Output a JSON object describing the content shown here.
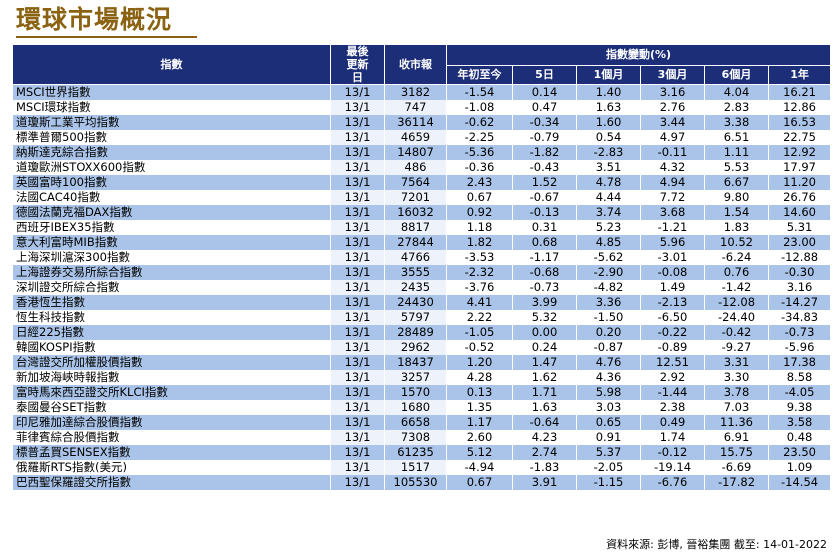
{
  "title": "環球市場概況",
  "headers": {
    "index": "指數",
    "date": "最後更新日",
    "close": "收市報",
    "change_group": "指數變動(%)",
    "periods": [
      "年初至今",
      "5日",
      "1個月",
      "3個月",
      "6個月",
      "1年"
    ]
  },
  "rows": [
    {
      "name": "MSCI世界指數",
      "date": "13/1",
      "close": "3182",
      "c": [
        "-1.54",
        "0.14",
        "1.40",
        "3.16",
        "4.04",
        "16.21"
      ]
    },
    {
      "name": "MSCI環球指數",
      "date": "13/1",
      "close": "747",
      "c": [
        "-1.08",
        "0.47",
        "1.63",
        "2.76",
        "2.83",
        "12.86"
      ]
    },
    {
      "name": "道瓊斯工業平均指數",
      "date": "13/1",
      "close": "36114",
      "c": [
        "-0.62",
        "-0.34",
        "1.60",
        "3.44",
        "3.38",
        "16.53"
      ]
    },
    {
      "name": "標準普爾500指數",
      "date": "13/1",
      "close": "4659",
      "c": [
        "-2.25",
        "-0.79",
        "0.54",
        "4.97",
        "6.51",
        "22.75"
      ]
    },
    {
      "name": "納斯達克綜合指數",
      "date": "13/1",
      "close": "14807",
      "c": [
        "-5.36",
        "-1.82",
        "-2.83",
        "-0.11",
        "1.11",
        "12.92"
      ]
    },
    {
      "name": "道瓊歐洲STOXX600指數",
      "date": "13/1",
      "close": "486",
      "c": [
        "-0.36",
        "-0.43",
        "3.51",
        "4.32",
        "5.53",
        "17.97"
      ]
    },
    {
      "name": "英國富時100指數",
      "date": "13/1",
      "close": "7564",
      "c": [
        "2.43",
        "1.52",
        "4.78",
        "4.94",
        "6.67",
        "11.20"
      ]
    },
    {
      "name": "法國CAC40指數",
      "date": "13/1",
      "close": "7201",
      "c": [
        "0.67",
        "-0.67",
        "4.44",
        "7.72",
        "9.80",
        "26.76"
      ]
    },
    {
      "name": "德國法蘭克福DAX指數",
      "date": "13/1",
      "close": "16032",
      "c": [
        "0.92",
        "-0.13",
        "3.74",
        "3.68",
        "1.54",
        "14.60"
      ]
    },
    {
      "name": "西班牙IBEX35指數",
      "date": "13/1",
      "close": "8817",
      "c": [
        "1.18",
        "0.31",
        "5.23",
        "-1.21",
        "1.83",
        "5.31"
      ]
    },
    {
      "name": "意大利富時MIB指數",
      "date": "13/1",
      "close": "27844",
      "c": [
        "1.82",
        "0.68",
        "4.85",
        "5.96",
        "10.52",
        "23.00"
      ]
    },
    {
      "name": "上海深圳滬深300指數",
      "date": "13/1",
      "close": "4766",
      "c": [
        "-3.53",
        "-1.17",
        "-5.62",
        "-3.01",
        "-6.24",
        "-12.88"
      ]
    },
    {
      "name": "上海證券交易所綜合指數",
      "date": "13/1",
      "close": "3555",
      "c": [
        "-2.32",
        "-0.68",
        "-2.90",
        "-0.08",
        "0.76",
        "-0.30"
      ]
    },
    {
      "name": "深圳證交所綜合指數",
      "date": "13/1",
      "close": "2435",
      "c": [
        "-3.76",
        "-0.73",
        "-4.82",
        "1.49",
        "-1.42",
        "3.16"
      ]
    },
    {
      "name": "香港恆生指數",
      "date": "13/1",
      "close": "24430",
      "c": [
        "4.41",
        "3.99",
        "3.36",
        "-2.13",
        "-12.08",
        "-14.27"
      ]
    },
    {
      "name": "恆生科技指數",
      "date": "13/1",
      "close": "5797",
      "c": [
        "2.22",
        "5.32",
        "-1.50",
        "-6.50",
        "-24.40",
        "-34.83"
      ]
    },
    {
      "name": "日經225指數",
      "date": "13/1",
      "close": "28489",
      "c": [
        "-1.05",
        "0.00",
        "0.20",
        "-0.22",
        "-0.42",
        "-0.73"
      ]
    },
    {
      "name": "韓國KOSPI指數",
      "date": "13/1",
      "close": "2962",
      "c": [
        "-0.52",
        "0.24",
        "-0.87",
        "-0.89",
        "-9.27",
        "-5.96"
      ]
    },
    {
      "name": "台灣證交所加權股價指數",
      "date": "13/1",
      "close": "18437",
      "c": [
        "1.20",
        "1.47",
        "4.76",
        "12.51",
        "3.31",
        "17.38"
      ]
    },
    {
      "name": "新加坡海峽時報指數",
      "date": "13/1",
      "close": "3257",
      "c": [
        "4.28",
        "1.62",
        "4.36",
        "2.92",
        "3.30",
        "8.58"
      ]
    },
    {
      "name": "富時馬來西亞證交所KLCI指數",
      "date": "13/1",
      "close": "1570",
      "c": [
        "0.13",
        "1.71",
        "5.98",
        "-1.44",
        "3.78",
        "-4.05"
      ]
    },
    {
      "name": "泰國曼谷SET指數",
      "date": "13/1",
      "close": "1680",
      "c": [
        "1.35",
        "1.63",
        "3.03",
        "2.38",
        "7.03",
        "9.38"
      ]
    },
    {
      "name": "印尼雅加達綜合股價指數",
      "date": "13/1",
      "close": "6658",
      "c": [
        "1.17",
        "-0.64",
        "0.65",
        "0.49",
        "11.36",
        "3.58"
      ]
    },
    {
      "name": "菲律賓綜合股價指數",
      "date": "13/1",
      "close": "7308",
      "c": [
        "2.60",
        "4.23",
        "0.91",
        "1.74",
        "6.91",
        "0.48"
      ]
    },
    {
      "name": "標普孟買SENSEX指數",
      "date": "13/1",
      "close": "61235",
      "c": [
        "5.12",
        "2.74",
        "5.37",
        "-0.12",
        "15.75",
        "23.50"
      ]
    },
    {
      "name": "俄羅斯RTS指數(美元)",
      "date": "13/1",
      "close": "1517",
      "c": [
        "-4.94",
        "-1.83",
        "-2.05",
        "-19.14",
        "-6.69",
        "1.09"
      ]
    },
    {
      "name": "巴西聖保羅證交所指數",
      "date": "13/1",
      "close": "105530",
      "c": [
        "0.67",
        "3.91",
        "-1.15",
        "-6.76",
        "-17.82",
        "-14.54"
      ]
    }
  ],
  "source": "資料來源: 彭博, 晉裕集團 截至: 14-01-2022",
  "colors": {
    "header_bg": "#1c2e78",
    "row_blue": "#a9c4e8",
    "title": "#8a6212"
  }
}
